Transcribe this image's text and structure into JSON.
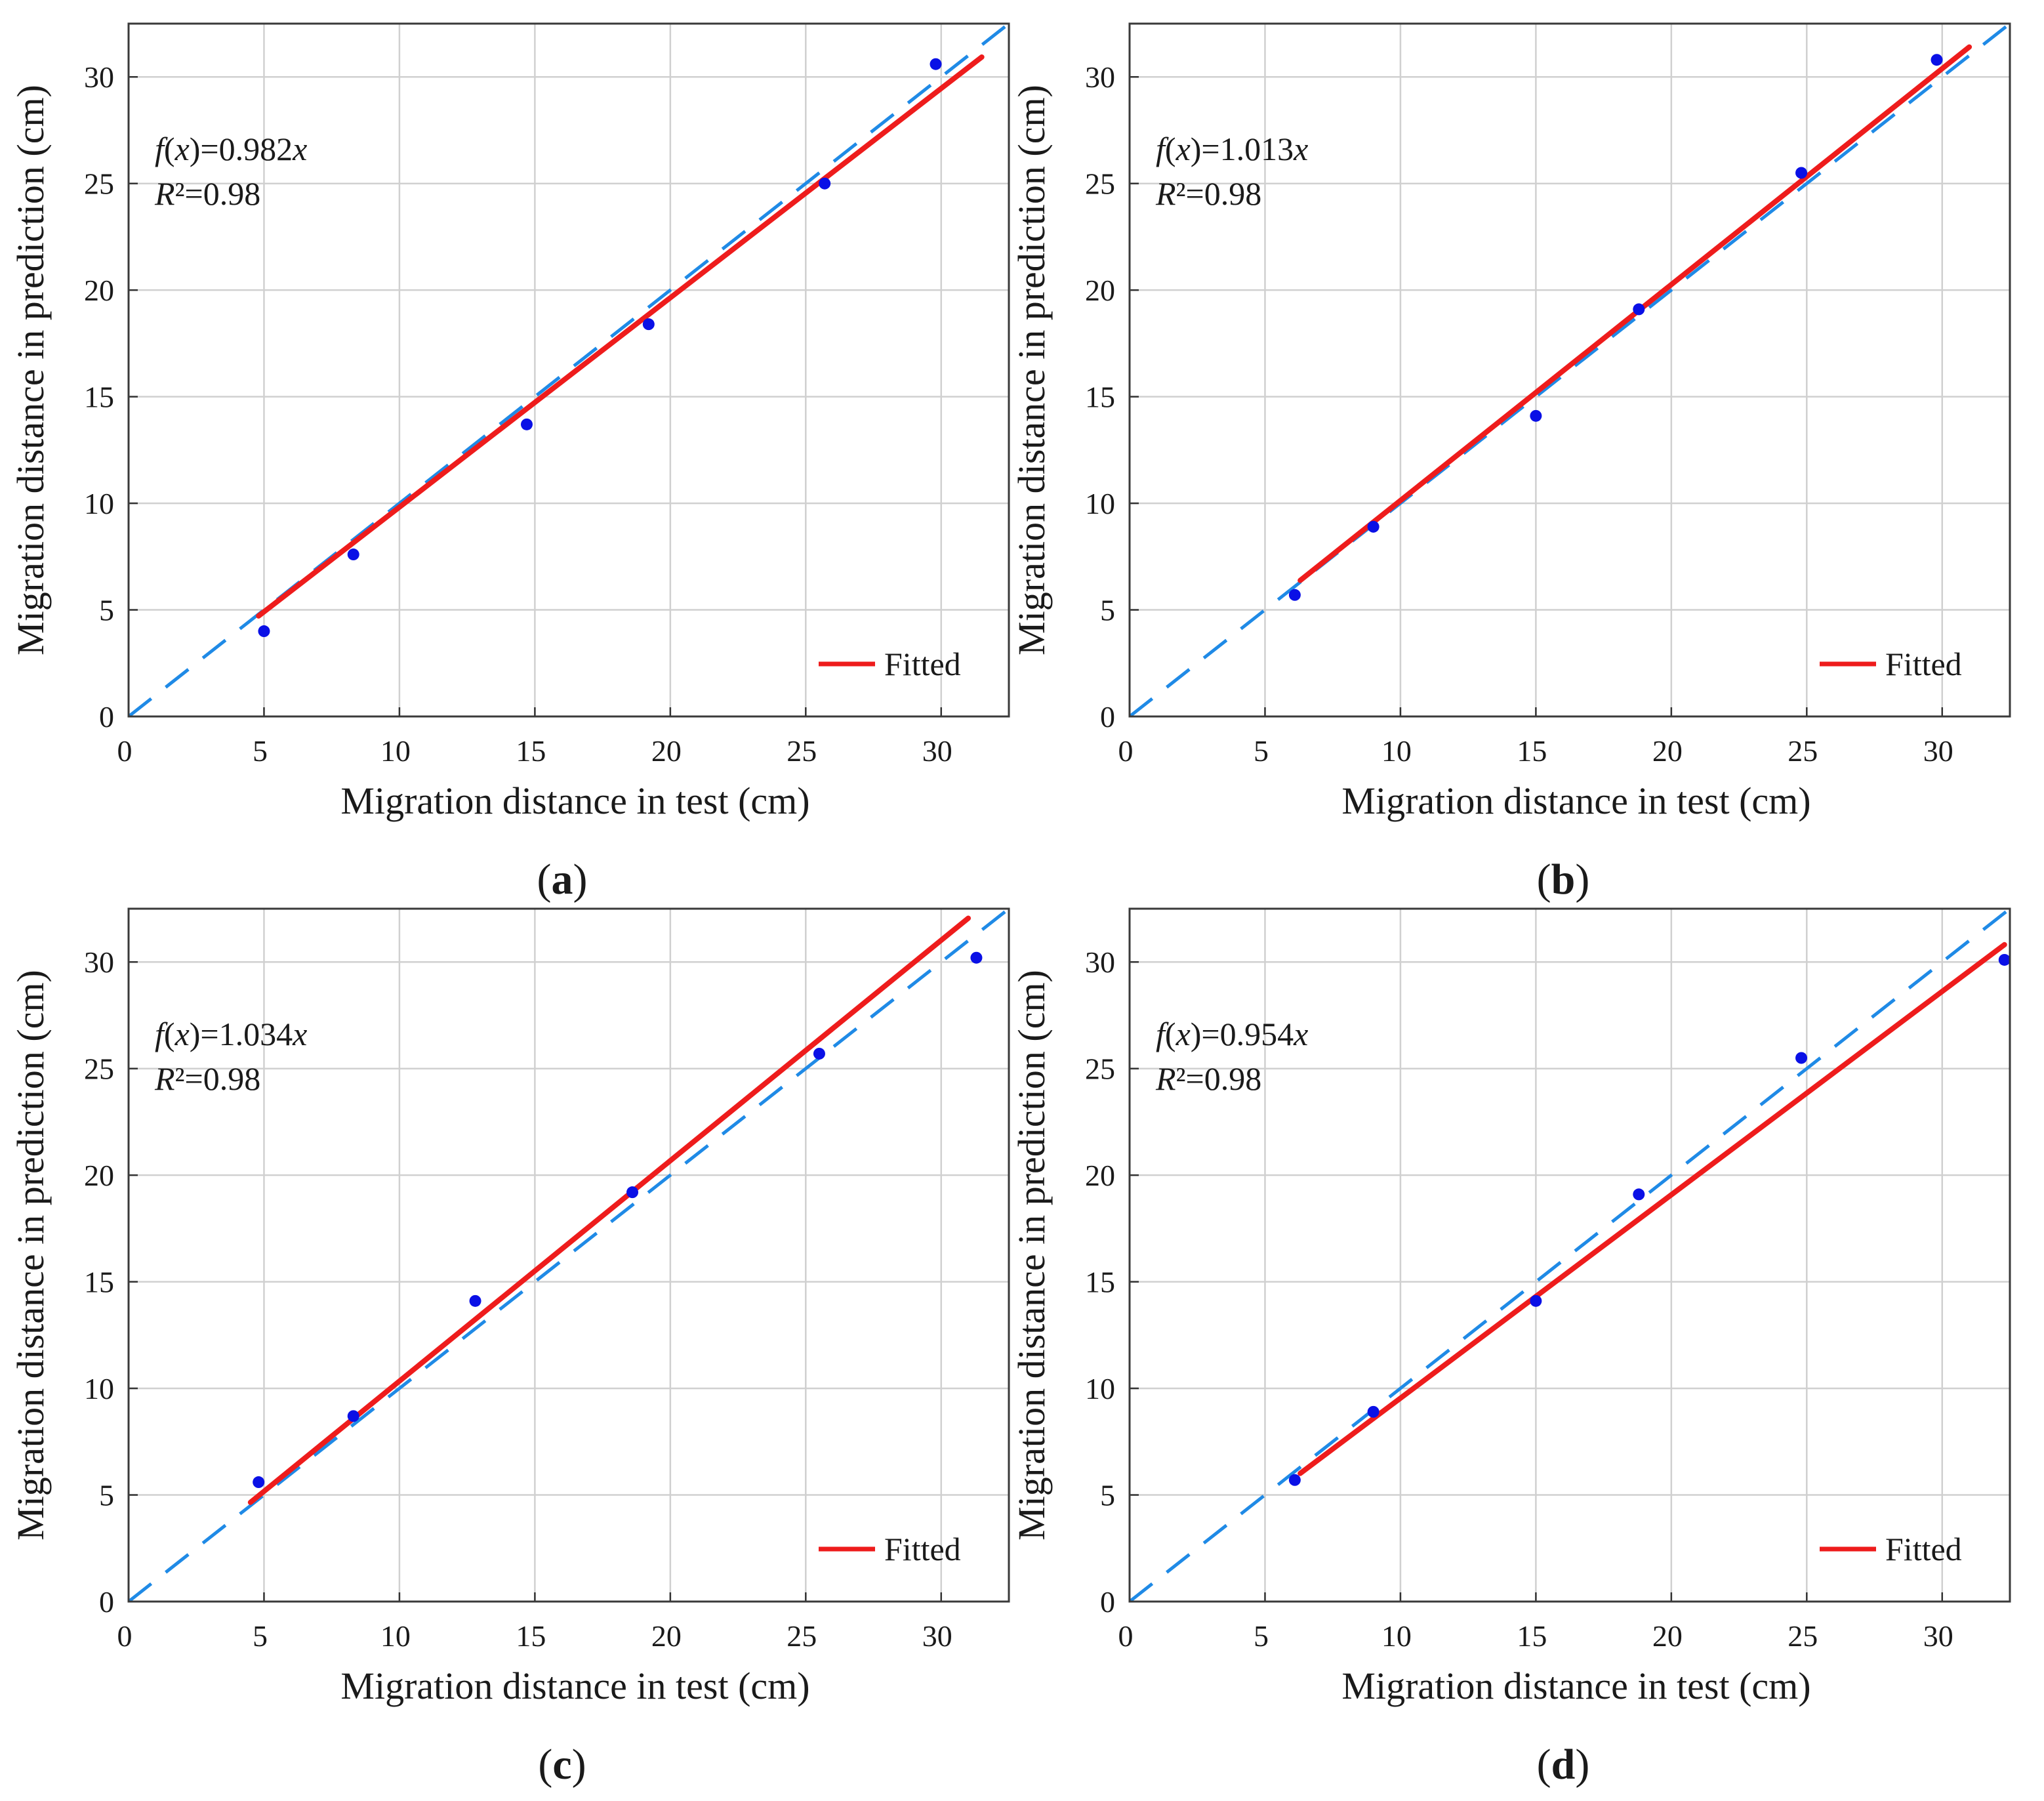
{
  "chart_data": [
    {
      "panel": "a",
      "type": "scatter",
      "caption_label": "a",
      "xlabel": "Migration distance in test (cm)",
      "ylabel": "Migration distance in prediction (cm)",
      "xlim": [
        0,
        32.5
      ],
      "ylim": [
        0,
        32.5
      ],
      "xticks": [
        0,
        5,
        10,
        15,
        20,
        25,
        30
      ],
      "yticks": [
        0,
        5,
        10,
        15,
        20,
        25,
        30
      ],
      "grid": true,
      "points": [
        [
          5.0,
          4.0
        ],
        [
          8.3,
          7.6
        ],
        [
          14.7,
          13.7
        ],
        [
          19.2,
          18.4
        ],
        [
          25.7,
          25.0
        ],
        [
          29.8,
          30.6
        ]
      ],
      "fit": {
        "slope": 0.982,
        "x_range": [
          4.8,
          31.5
        ],
        "equation_prefix": "f",
        "equation_var": "x",
        "equation_text": "=0.982",
        "r2_prefix": "R",
        "r2_text": "²=0.98"
      },
      "reference_line": {
        "type": "y=x",
        "x_range": [
          0,
          32.5
        ]
      },
      "legend": {
        "label": "Fitted",
        "position": "bottom-right"
      },
      "colors": {
        "points": "#0a10e6",
        "fit": "#ee1c1c",
        "reference": "#1f8ae6",
        "grid": "#d0d0d0"
      }
    },
    {
      "panel": "b",
      "type": "scatter",
      "caption_label": "b",
      "xlabel": "Migration distance in test (cm)",
      "ylabel": "Migration distance in prediction (cm)",
      "xlim": [
        0,
        32.5
      ],
      "ylim": [
        0,
        32.5
      ],
      "xticks": [
        0,
        5,
        10,
        15,
        20,
        25,
        30
      ],
      "yticks": [
        0,
        5,
        10,
        15,
        20,
        25,
        30
      ],
      "grid": true,
      "points": [
        [
          6.1,
          5.7
        ],
        [
          9.0,
          8.9
        ],
        [
          15.0,
          14.1
        ],
        [
          18.8,
          19.1
        ],
        [
          24.8,
          25.5
        ],
        [
          29.8,
          30.8
        ]
      ],
      "fit": {
        "slope": 1.013,
        "x_range": [
          6.3,
          31.0
        ],
        "equation_prefix": "f",
        "equation_var": "x",
        "equation_text": "=1.013",
        "r2_prefix": "R",
        "r2_text": "²=0.98"
      },
      "reference_line": {
        "type": "y=x",
        "x_range": [
          0,
          32.5
        ]
      },
      "legend": {
        "label": "Fitted",
        "position": "bottom-right"
      },
      "colors": {
        "points": "#0a10e6",
        "fit": "#ee1c1c",
        "reference": "#1f8ae6",
        "grid": "#d0d0d0"
      }
    },
    {
      "panel": "c",
      "type": "scatter",
      "caption_label": "c",
      "xlabel": "Migration distance in test (cm)",
      "ylabel": "Migration distance in prediction (cm)",
      "xlim": [
        0,
        32.5
      ],
      "ylim": [
        0,
        32.5
      ],
      "xticks": [
        0,
        5,
        10,
        15,
        20,
        25,
        30
      ],
      "yticks": [
        0,
        5,
        10,
        15,
        20,
        25,
        30
      ],
      "grid": true,
      "points": [
        [
          4.8,
          5.6
        ],
        [
          8.3,
          8.7
        ],
        [
          12.8,
          14.1
        ],
        [
          18.6,
          19.2
        ],
        [
          25.5,
          25.7
        ],
        [
          31.3,
          30.2
        ]
      ],
      "fit": {
        "slope": 1.034,
        "x_range": [
          4.5,
          31.0
        ],
        "equation_prefix": "f",
        "equation_var": "x",
        "equation_text": "=1.034",
        "r2_prefix": "R",
        "r2_text": "²=0.98"
      },
      "reference_line": {
        "type": "y=x",
        "x_range": [
          0,
          32.5
        ]
      },
      "legend": {
        "label": "Fitted",
        "position": "bottom-right"
      },
      "colors": {
        "points": "#0a10e6",
        "fit": "#ee1c1c",
        "reference": "#1f8ae6",
        "grid": "#d0d0d0"
      }
    },
    {
      "panel": "d",
      "type": "scatter",
      "caption_label": "d",
      "xlabel": "Migration distance in test (cm)",
      "ylabel": "Migration distance in prediction (cm)",
      "xlim": [
        0,
        32.5
      ],
      "ylim": [
        0,
        32.5
      ],
      "xticks": [
        0,
        5,
        10,
        15,
        20,
        25,
        30
      ],
      "yticks": [
        0,
        5,
        10,
        15,
        20,
        25,
        30
      ],
      "grid": true,
      "points": [
        [
          6.1,
          5.7
        ],
        [
          9.0,
          8.9
        ],
        [
          15.0,
          14.1
        ],
        [
          18.8,
          19.1
        ],
        [
          24.8,
          25.5
        ],
        [
          32.3,
          30.1
        ]
      ],
      "fit": {
        "slope": 0.954,
        "x_range": [
          6.3,
          32.3
        ],
        "equation_prefix": "f",
        "equation_var": "x",
        "equation_text": "=0.954",
        "r2_prefix": "R",
        "r2_text": "²=0.98"
      },
      "reference_line": {
        "type": "y=x",
        "x_range": [
          0,
          32.5
        ]
      },
      "legend": {
        "label": "Fitted",
        "position": "bottom-right"
      },
      "colors": {
        "points": "#0a10e6",
        "fit": "#ee1c1c",
        "reference": "#1f8ae6",
        "grid": "#d0d0d0"
      }
    }
  ]
}
